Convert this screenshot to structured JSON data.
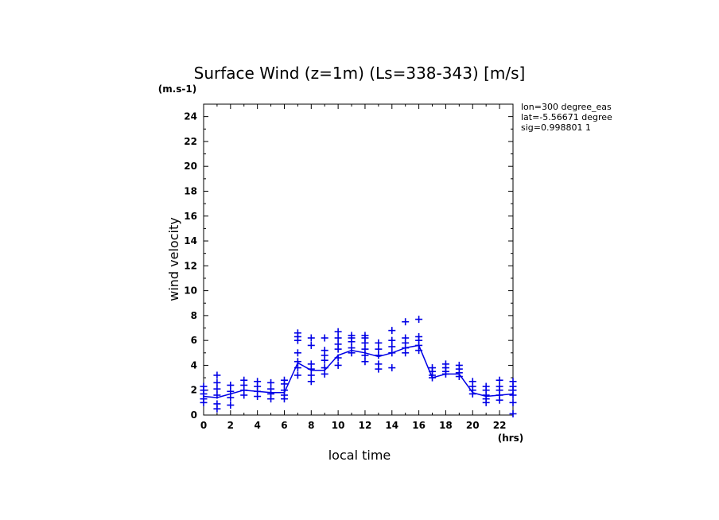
{
  "chart_data": {
    "type": "scatter",
    "title": "Surface Wind (z=1m) (Ls=338-343) [m/s]",
    "y_unit": "(m.s-1)",
    "x_unit": "(hrs)",
    "xlabel": "local time",
    "ylabel": "wind velocity",
    "xlim": [
      0,
      23
    ],
    "ylim": [
      0,
      25
    ],
    "xticks": [
      0,
      2,
      4,
      6,
      8,
      10,
      12,
      14,
      16,
      18,
      20,
      22
    ],
    "yticks": [
      0,
      2,
      4,
      6,
      8,
      10,
      12,
      14,
      16,
      18,
      20,
      22,
      24
    ],
    "color": "#0000e6",
    "info_lines": [
      "lon=300 degree_eas",
      "lat=-5.56671 degree",
      "sig=0.998801 1"
    ],
    "series": [
      {
        "style": "line",
        "x": [
          0,
          1,
          2,
          3,
          4,
          5,
          6,
          7,
          8,
          9,
          10,
          11,
          12,
          13,
          14,
          15,
          16,
          17,
          18,
          19,
          20,
          21,
          22,
          23
        ],
        "y": [
          1.5,
          1.4,
          1.7,
          2.0,
          1.9,
          1.8,
          1.8,
          4.2,
          3.6,
          3.6,
          4.8,
          5.2,
          5.0,
          4.7,
          5.0,
          5.4,
          5.6,
          3.0,
          3.3,
          3.3,
          1.8,
          1.5,
          1.6,
          1.7
        ]
      },
      {
        "style": "cross",
        "points": [
          [
            0,
            1.0
          ],
          [
            0,
            1.3
          ],
          [
            0,
            1.7
          ],
          [
            0,
            2.0
          ],
          [
            0,
            2.3
          ],
          [
            1,
            0.5
          ],
          [
            1,
            0.9
          ],
          [
            1,
            1.6
          ],
          [
            1,
            2.1
          ],
          [
            1,
            2.6
          ],
          [
            1,
            3.2
          ],
          [
            2,
            0.8
          ],
          [
            2,
            1.4
          ],
          [
            2,
            1.9
          ],
          [
            2,
            2.4
          ],
          [
            3,
            1.6
          ],
          [
            3,
            2.0
          ],
          [
            3,
            2.4
          ],
          [
            3,
            2.8
          ],
          [
            4,
            1.5
          ],
          [
            4,
            1.9
          ],
          [
            4,
            2.3
          ],
          [
            4,
            2.7
          ],
          [
            5,
            1.3
          ],
          [
            5,
            1.7
          ],
          [
            5,
            2.1
          ],
          [
            5,
            2.6
          ],
          [
            6,
            1.3
          ],
          [
            6,
            1.6
          ],
          [
            6,
            2.0
          ],
          [
            6,
            2.5
          ],
          [
            6,
            2.8
          ],
          [
            7,
            3.2
          ],
          [
            7,
            3.8
          ],
          [
            7,
            4.3
          ],
          [
            7,
            5.0
          ],
          [
            7,
            6.0
          ],
          [
            7,
            6.3
          ],
          [
            7,
            6.6
          ],
          [
            8,
            2.7
          ],
          [
            8,
            3.2
          ],
          [
            8,
            3.7
          ],
          [
            8,
            4.1
          ],
          [
            8,
            5.6
          ],
          [
            8,
            6.2
          ],
          [
            9,
            3.3
          ],
          [
            9,
            3.8
          ],
          [
            9,
            4.4
          ],
          [
            9,
            4.8
          ],
          [
            9,
            5.2
          ],
          [
            9,
            6.2
          ],
          [
            10,
            4.0
          ],
          [
            10,
            4.6
          ],
          [
            10,
            5.3
          ],
          [
            10,
            5.7
          ],
          [
            10,
            6.2
          ],
          [
            10,
            6.7
          ],
          [
            11,
            5.0
          ],
          [
            11,
            5.4
          ],
          [
            11,
            5.9
          ],
          [
            11,
            6.2
          ],
          [
            11,
            6.4
          ],
          [
            12,
            4.3
          ],
          [
            12,
            4.8
          ],
          [
            12,
            5.3
          ],
          [
            12,
            5.8
          ],
          [
            12,
            6.2
          ],
          [
            12,
            6.4
          ],
          [
            13,
            3.7
          ],
          [
            13,
            4.1
          ],
          [
            13,
            4.8
          ],
          [
            13,
            5.3
          ],
          [
            13,
            5.8
          ],
          [
            14,
            3.8
          ],
          [
            14,
            5.0
          ],
          [
            14,
            5.5
          ],
          [
            14,
            6.0
          ],
          [
            14,
            6.8
          ],
          [
            15,
            5.0
          ],
          [
            15,
            5.4
          ],
          [
            15,
            5.8
          ],
          [
            15,
            6.2
          ],
          [
            15,
            7.5
          ],
          [
            16,
            5.2
          ],
          [
            16,
            5.6
          ],
          [
            16,
            6.0
          ],
          [
            16,
            6.3
          ],
          [
            16,
            7.7
          ],
          [
            17,
            3.0
          ],
          [
            17,
            3.2
          ],
          [
            17,
            3.5
          ],
          [
            17,
            3.8
          ],
          [
            18,
            3.3
          ],
          [
            18,
            3.5
          ],
          [
            18,
            3.8
          ],
          [
            18,
            4.1
          ],
          [
            19,
            3.1
          ],
          [
            19,
            3.4
          ],
          [
            19,
            3.7
          ],
          [
            19,
            4.0
          ],
          [
            20,
            1.7
          ],
          [
            20,
            2.0
          ],
          [
            20,
            2.3
          ],
          [
            20,
            2.7
          ],
          [
            21,
            1.0
          ],
          [
            21,
            1.3
          ],
          [
            21,
            1.6
          ],
          [
            21,
            2.0
          ],
          [
            21,
            2.3
          ],
          [
            22,
            1.2
          ],
          [
            22,
            1.6
          ],
          [
            22,
            2.0
          ],
          [
            22,
            2.3
          ],
          [
            22,
            2.8
          ],
          [
            23,
            0.1
          ],
          [
            23,
            1.0
          ],
          [
            23,
            1.6
          ],
          [
            23,
            2.0
          ],
          [
            23,
            2.3
          ],
          [
            23,
            2.7
          ]
        ]
      }
    ]
  }
}
